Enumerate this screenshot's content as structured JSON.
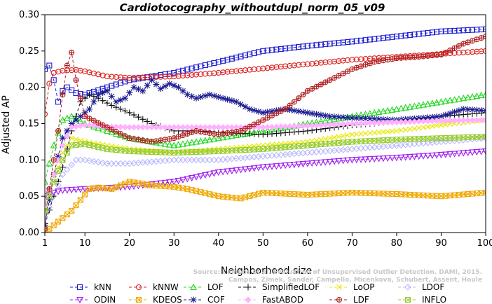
{
  "chart_data": {
    "type": "line",
    "title": "Cardiotocography_withoutdupl_norm_05_v09",
    "xlabel": "Neighborhood size",
    "ylabel": "Adjusted AP",
    "xlim": [
      1,
      100
    ],
    "ylim": [
      0,
      0.3
    ],
    "xticks": [
      1,
      10,
      20,
      30,
      40,
      50,
      60,
      70,
      80,
      90,
      100
    ],
    "yticks": [
      0.0,
      0.05,
      0.1,
      0.15,
      0.2,
      0.25,
      0.3
    ],
    "ytick_labels": [
      "0.00",
      "0.05",
      "0.10",
      "0.15",
      "0.20",
      "0.25",
      "0.30"
    ],
    "grid": false,
    "legend_position": "bottom",
    "credit": [
      "Source: Campos et al. Evaluation of Unsupervised Outlier Detection. DAMI, 2015.",
      "Campos, Zimek, Sander, Campello, Micenkova, Schubert, Assent, Houle"
    ],
    "series": [
      {
        "name": "kNN",
        "color": "#1f1fd0",
        "marker": "square",
        "dashed": true,
        "points": [
          [
            1,
            0.225
          ],
          [
            2,
            0.23
          ],
          [
            3,
            0.21
          ],
          [
            4,
            0.18
          ],
          [
            5,
            0.195
          ],
          [
            6,
            0.2
          ],
          [
            8,
            0.192
          ],
          [
            10,
            0.19
          ],
          [
            15,
            0.2
          ],
          [
            20,
            0.21
          ],
          [
            30,
            0.22
          ],
          [
            40,
            0.235
          ],
          [
            50,
            0.25
          ],
          [
            60,
            0.257
          ],
          [
            70,
            0.263
          ],
          [
            80,
            0.27
          ],
          [
            90,
            0.277
          ],
          [
            100,
            0.28
          ]
        ]
      },
      {
        "name": "kNNW",
        "color": "#dc1f1f",
        "marker": "circle",
        "dashed": true,
        "points": [
          [
            1,
            0.163
          ],
          [
            2,
            0.205
          ],
          [
            3,
            0.22
          ],
          [
            5,
            0.223
          ],
          [
            8,
            0.224
          ],
          [
            10,
            0.222
          ],
          [
            15,
            0.215
          ],
          [
            20,
            0.213
          ],
          [
            30,
            0.215
          ],
          [
            40,
            0.22
          ],
          [
            50,
            0.226
          ],
          [
            60,
            0.232
          ],
          [
            70,
            0.238
          ],
          [
            80,
            0.242
          ],
          [
            90,
            0.246
          ],
          [
            100,
            0.25
          ]
        ]
      },
      {
        "name": "LOF",
        "color": "#22d822",
        "marker": "triangle-up",
        "dashed": true,
        "points": [
          [
            1,
            0.07
          ],
          [
            3,
            0.12
          ],
          [
            5,
            0.155
          ],
          [
            7,
            0.16
          ],
          [
            10,
            0.15
          ],
          [
            15,
            0.14
          ],
          [
            20,
            0.13
          ],
          [
            30,
            0.12
          ],
          [
            40,
            0.13
          ],
          [
            50,
            0.14
          ],
          [
            60,
            0.15
          ],
          [
            70,
            0.16
          ],
          [
            80,
            0.17
          ],
          [
            90,
            0.18
          ],
          [
            100,
            0.19
          ]
        ]
      },
      {
        "name": "SimplifiedLOF",
        "color": "#111111",
        "marker": "plus",
        "dashed": true,
        "points": [
          [
            1,
            0.012
          ],
          [
            3,
            0.05
          ],
          [
            5,
            0.09
          ],
          [
            7,
            0.14
          ],
          [
            9,
            0.18
          ],
          [
            11,
            0.19
          ],
          [
            13,
            0.185
          ],
          [
            16,
            0.175
          ],
          [
            20,
            0.165
          ],
          [
            25,
            0.15
          ],
          [
            30,
            0.14
          ],
          [
            35,
            0.14
          ],
          [
            40,
            0.138
          ],
          [
            50,
            0.135
          ],
          [
            60,
            0.14
          ],
          [
            70,
            0.148
          ],
          [
            80,
            0.153
          ],
          [
            90,
            0.16
          ],
          [
            100,
            0.165
          ]
        ]
      },
      {
        "name": "LoOP",
        "color": "#e8e800",
        "marker": "x",
        "dashed": true,
        "points": [
          [
            1,
            0.03
          ],
          [
            3,
            0.07
          ],
          [
            5,
            0.11
          ],
          [
            7,
            0.13
          ],
          [
            10,
            0.125
          ],
          [
            15,
            0.12
          ],
          [
            20,
            0.115
          ],
          [
            30,
            0.11
          ],
          [
            40,
            0.115
          ],
          [
            50,
            0.12
          ],
          [
            60,
            0.125
          ],
          [
            70,
            0.135
          ],
          [
            80,
            0.14
          ],
          [
            90,
            0.148
          ],
          [
            100,
            0.155
          ]
        ]
      },
      {
        "name": "LDOF",
        "color": "#b8b8ff",
        "marker": "diamond",
        "dashed": true,
        "points": [
          [
            1,
            0.02
          ],
          [
            3,
            0.05
          ],
          [
            5,
            0.08
          ],
          [
            8,
            0.1
          ],
          [
            10,
            0.1
          ],
          [
            15,
            0.095
          ],
          [
            20,
            0.095
          ],
          [
            30,
            0.1
          ],
          [
            40,
            0.1
          ],
          [
            50,
            0.105
          ],
          [
            60,
            0.11
          ],
          [
            70,
            0.115
          ],
          [
            80,
            0.12
          ],
          [
            90,
            0.125
          ],
          [
            100,
            0.13
          ]
        ]
      },
      {
        "name": "ODIN",
        "color": "#a020f0",
        "marker": "triangle-down",
        "dashed": true,
        "points": [
          [
            1,
            0.05
          ],
          [
            3,
            0.055
          ],
          [
            5,
            0.058
          ],
          [
            10,
            0.06
          ],
          [
            20,
            0.063
          ],
          [
            30,
            0.07
          ],
          [
            40,
            0.083
          ],
          [
            50,
            0.09
          ],
          [
            60,
            0.095
          ],
          [
            70,
            0.1
          ],
          [
            80,
            0.103
          ],
          [
            90,
            0.107
          ],
          [
            100,
            0.112
          ]
        ]
      },
      {
        "name": "KDEOS",
        "color": "#f0a800",
        "marker": "square-x",
        "dashed": true,
        "points": [
          [
            1,
            0.0
          ],
          [
            3,
            0.01
          ],
          [
            5,
            0.02
          ],
          [
            7,
            0.03
          ],
          [
            9,
            0.045
          ],
          [
            11,
            0.06
          ],
          [
            13,
            0.062
          ],
          [
            16,
            0.06
          ],
          [
            20,
            0.07
          ],
          [
            25,
            0.065
          ],
          [
            30,
            0.063
          ],
          [
            33,
            0.06
          ],
          [
            40,
            0.05
          ],
          [
            45,
            0.047
          ],
          [
            50,
            0.055
          ],
          [
            60,
            0.052
          ],
          [
            70,
            0.055
          ],
          [
            80,
            0.053
          ],
          [
            90,
            0.05
          ],
          [
            100,
            0.055
          ]
        ]
      },
      {
        "name": "COF",
        "color": "#1a1a90",
        "marker": "asterisk",
        "dashed": true,
        "points": [
          [
            1,
            0.01
          ],
          [
            3,
            0.08
          ],
          [
            5,
            0.13
          ],
          [
            7,
            0.15
          ],
          [
            9,
            0.16
          ],
          [
            11,
            0.17
          ],
          [
            13,
            0.19
          ],
          [
            15,
            0.195
          ],
          [
            17,
            0.18
          ],
          [
            19,
            0.185
          ],
          [
            21,
            0.2
          ],
          [
            23,
            0.195
          ],
          [
            25,
            0.21
          ],
          [
            27,
            0.198
          ],
          [
            29,
            0.205
          ],
          [
            31,
            0.2
          ],
          [
            33,
            0.19
          ],
          [
            35,
            0.185
          ],
          [
            38,
            0.19
          ],
          [
            41,
            0.185
          ],
          [
            44,
            0.18
          ],
          [
            47,
            0.17
          ],
          [
            50,
            0.165
          ],
          [
            55,
            0.17
          ],
          [
            60,
            0.165
          ],
          [
            65,
            0.16
          ],
          [
            70,
            0.158
          ],
          [
            80,
            0.155
          ],
          [
            90,
            0.16
          ],
          [
            95,
            0.17
          ],
          [
            100,
            0.168
          ]
        ]
      },
      {
        "name": "FastABOD",
        "color": "#ffb0ff",
        "marker": "diamond-filled",
        "dashed": true,
        "points": [
          [
            1,
            0.04
          ],
          [
            3,
            0.08
          ],
          [
            5,
            0.12
          ],
          [
            7,
            0.145
          ],
          [
            10,
            0.148
          ],
          [
            15,
            0.146
          ],
          [
            20,
            0.145
          ],
          [
            30,
            0.145
          ],
          [
            40,
            0.145
          ],
          [
            50,
            0.145
          ],
          [
            60,
            0.147
          ],
          [
            70,
            0.15
          ],
          [
            80,
            0.152
          ],
          [
            90,
            0.154
          ],
          [
            100,
            0.155
          ]
        ]
      },
      {
        "name": "LDF",
        "color": "#b01f1f",
        "marker": "circle-plus",
        "dashed": true,
        "points": [
          [
            1,
            0.005
          ],
          [
            2,
            0.06
          ],
          [
            3,
            0.1
          ],
          [
            4,
            0.14
          ],
          [
            5,
            0.19
          ],
          [
            6,
            0.23
          ],
          [
            7,
            0.248
          ],
          [
            8,
            0.21
          ],
          [
            10,
            0.16
          ],
          [
            15,
            0.145
          ],
          [
            20,
            0.13
          ],
          [
            25,
            0.125
          ],
          [
            30,
            0.13
          ],
          [
            35,
            0.14
          ],
          [
            40,
            0.135
          ],
          [
            45,
            0.14
          ],
          [
            50,
            0.155
          ],
          [
            55,
            0.17
          ],
          [
            60,
            0.195
          ],
          [
            65,
            0.21
          ],
          [
            70,
            0.225
          ],
          [
            75,
            0.235
          ],
          [
            80,
            0.24
          ],
          [
            85,
            0.242
          ],
          [
            90,
            0.245
          ],
          [
            95,
            0.26
          ],
          [
            100,
            0.27
          ]
        ]
      },
      {
        "name": "INFLO",
        "color": "#98cc30",
        "marker": "square-x",
        "dashed": true,
        "points": [
          [
            1,
            0.03
          ],
          [
            3,
            0.07
          ],
          [
            5,
            0.1
          ],
          [
            7,
            0.12
          ],
          [
            10,
            0.122
          ],
          [
            15,
            0.115
          ],
          [
            20,
            0.112
          ],
          [
            30,
            0.11
          ],
          [
            40,
            0.112
          ],
          [
            50,
            0.115
          ],
          [
            60,
            0.12
          ],
          [
            70,
            0.125
          ],
          [
            80,
            0.128
          ],
          [
            90,
            0.13
          ],
          [
            100,
            0.132
          ]
        ]
      }
    ]
  }
}
